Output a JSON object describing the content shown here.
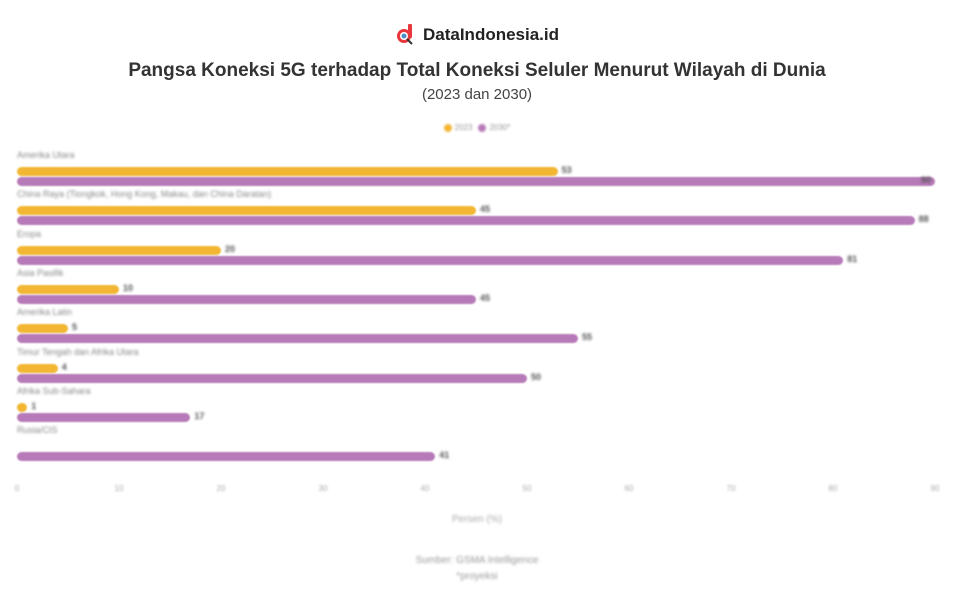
{
  "brand": {
    "name": "DataIndonesia.id",
    "logo_color": "#e8383d"
  },
  "header": {
    "title": "Pangsa Koneksi 5G terhadap Total Koneksi Seluler Menurut Wilayah di Dunia",
    "subtitle": "(2023 dan 2030)"
  },
  "legend": [
    {
      "label": "2023",
      "color": "#f2b632"
    },
    {
      "label": "2030*",
      "color": "#b77ab8"
    }
  ],
  "footer": {
    "xlabel": "Persen (%)",
    "source": "Sumber: GSMA Intelligence",
    "note": "*proyeksi"
  },
  "chart_data": {
    "type": "bar",
    "orientation": "horizontal",
    "title": "Pangsa Koneksi 5G terhadap Total Koneksi Seluler Menurut Wilayah di Dunia",
    "subtitle": "(2023 dan 2030)",
    "categories": [
      "Amerika Utara",
      "China Raya (Tiongkok, Hong Kong, Makau, dan China Daratan)",
      "Eropa",
      "Asia Pasifik",
      "Amerika Latin",
      "Timur Tengah dan Afrika Utara",
      "Afrika Sub-Sahara",
      "Rusia/CIS"
    ],
    "series": [
      {
        "name": "2023",
        "color": "#f2b632",
        "values": [
          53,
          45,
          20,
          10,
          5,
          4,
          1,
          0
        ]
      },
      {
        "name": "2030*",
        "color": "#b77ab8",
        "values": [
          90,
          88,
          81,
          45,
          55,
          50,
          17,
          41
        ]
      }
    ],
    "xlabel": "Persen (%)",
    "ylabel": "",
    "xlim": [
      0,
      90
    ],
    "xticks": [
      "0",
      "10",
      "20",
      "30",
      "40",
      "50",
      "60",
      "70",
      "80",
      "90"
    ],
    "grid": false,
    "legend_position": "top",
    "source": "Sumber: GSMA Intelligence",
    "note": "*proyeksi"
  }
}
